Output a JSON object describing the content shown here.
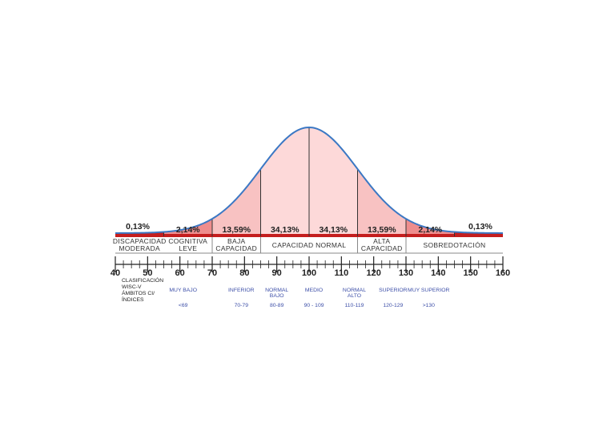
{
  "chart_data": {
    "type": "area",
    "title": "",
    "distribution": {
      "mean": 100,
      "sd": 15
    },
    "xlim": [
      40,
      160
    ],
    "ticks": [
      40,
      50,
      60,
      70,
      80,
      90,
      100,
      110,
      120,
      130,
      140,
      150,
      160
    ],
    "regions": [
      {
        "from": 40,
        "to": 55,
        "percent": "0,13%",
        "color": "#c41e1e"
      },
      {
        "from": 55,
        "to": 70,
        "percent": "2,14%",
        "color": "#ee8d8d"
      },
      {
        "from": 70,
        "to": 85,
        "percent": "13,59%",
        "color": "#f8c2c2"
      },
      {
        "from": 85,
        "to": 100,
        "percent": "34,13%",
        "color": "#fdd9d9"
      },
      {
        "from": 100,
        "to": 115,
        "percent": "34,13%",
        "color": "#fdd9d9"
      },
      {
        "from": 115,
        "to": 130,
        "percent": "13,59%",
        "color": "#f8c2c2"
      },
      {
        "from": 130,
        "to": 145,
        "percent": "2,14%",
        "color": "#ee8d8d"
      },
      {
        "from": 145,
        "to": 160,
        "percent": "0,13%",
        "color": "#c41e1e"
      }
    ],
    "categories": [
      {
        "from": 40,
        "to": 55,
        "lines": [
          "DISCAPACIDAD",
          "MODERADA"
        ]
      },
      {
        "from": 55,
        "to": 70,
        "lines": [
          "COGNITIVA",
          "LEVE"
        ]
      },
      {
        "from": 70,
        "to": 85,
        "lines": [
          "BAJA",
          "CAPACIDAD"
        ]
      },
      {
        "from": 85,
        "to": 115,
        "lines": [
          "CAPACIDAD NORMAL"
        ]
      },
      {
        "from": 115,
        "to": 130,
        "lines": [
          "ALTA",
          "CAPACIDAD"
        ]
      },
      {
        "from": 130,
        "to": 160,
        "lines": [
          "SOBREDOTACIÓN"
        ]
      }
    ],
    "side_label": [
      "CLASIFICACIÓN",
      "WISC-V",
      "ÁMBITOS CI/",
      "ÍNDICES"
    ],
    "wisc_ranges": [
      {
        "x": 61,
        "name": [
          "MUY BAJO"
        ],
        "range": "<69"
      },
      {
        "x": 79,
        "name": [
          "INFERIOR"
        ],
        "range": "70-79"
      },
      {
        "x": 90,
        "name": [
          "NORMAL",
          "BAJO"
        ],
        "range": "80-89"
      },
      {
        "x": 101.5,
        "name": [
          "MEDIO"
        ],
        "range": "90  - 109"
      },
      {
        "x": 114,
        "name": [
          "NORMAL",
          "ALTO"
        ],
        "range": "110-119"
      },
      {
        "x": 126,
        "name": [
          "SUPERIOR"
        ],
        "range": "120-129"
      },
      {
        "x": 137,
        "name": [
          "MUY SUPERIOR"
        ],
        "range": ">130"
      }
    ],
    "colors": {
      "curve": "#3b78c4",
      "baseline": "#c41e1e",
      "divider": "#333333"
    }
  }
}
